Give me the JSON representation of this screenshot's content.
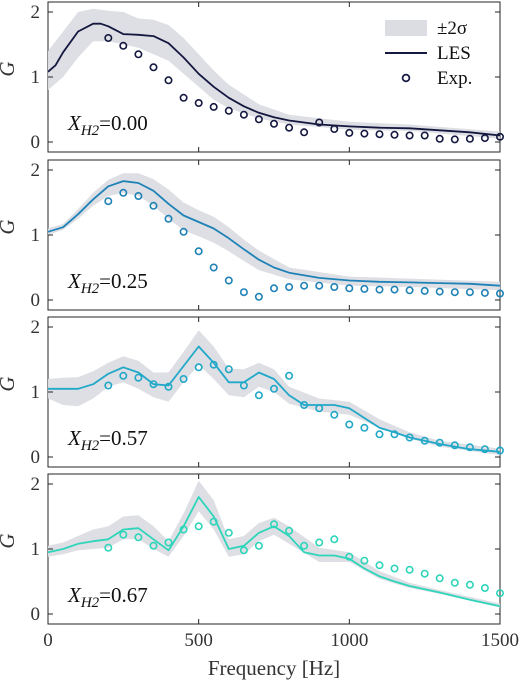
{
  "chart_data": {
    "type": "line",
    "xlabel": "Frequency [Hz]",
    "xlim": [
      0,
      1500
    ],
    "xticks": [
      0,
      500,
      1000,
      1500
    ],
    "legend": {
      "placement": "top-right",
      "entries": [
        {
          "id": "band",
          "label": "±2σ"
        },
        {
          "id": "les",
          "label": "LES"
        },
        {
          "id": "exp",
          "label": "Exp."
        }
      ]
    },
    "panels": [
      {
        "ylabel": "G",
        "ylim": [
          0,
          2
        ],
        "yticks": [
          0,
          1,
          2
        ],
        "label_var": "X",
        "label_sub": "H2",
        "label_val": "=0.00",
        "color": "#14183f",
        "les": {
          "x": [
            0,
            25,
            50,
            100,
            150,
            175,
            200,
            250,
            300,
            350,
            400,
            450,
            500,
            550,
            600,
            650,
            700,
            750,
            800,
            900,
            1000,
            1100,
            1200,
            1300,
            1400,
            1500
          ],
          "y": [
            1.08,
            1.18,
            1.38,
            1.7,
            1.82,
            1.82,
            1.78,
            1.66,
            1.65,
            1.63,
            1.52,
            1.3,
            1.05,
            0.85,
            0.68,
            0.55,
            0.45,
            0.38,
            0.33,
            0.27,
            0.24,
            0.22,
            0.21,
            0.18,
            0.15,
            0.1
          ]
        },
        "band": {
          "x": [
            0,
            50,
            100,
            150,
            200,
            250,
            300,
            350,
            400,
            450,
            500,
            550,
            600,
            700,
            800,
            1000,
            1200,
            1500
          ],
          "lower": [
            0.8,
            1.0,
            1.3,
            1.55,
            1.55,
            1.5,
            1.45,
            1.35,
            1.25,
            1.05,
            0.85,
            0.65,
            0.52,
            0.36,
            0.27,
            0.19,
            0.17,
            0.05
          ],
          "upper": [
            1.4,
            1.7,
            2.0,
            2.05,
            2.02,
            2.0,
            1.9,
            1.88,
            1.8,
            1.6,
            1.35,
            1.1,
            0.88,
            0.58,
            0.42,
            0.31,
            0.27,
            0.16
          ]
        },
        "exp": {
          "x": [
            200,
            250,
            300,
            350,
            400,
            450,
            500,
            550,
            600,
            650,
            700,
            750,
            800,
            850,
            900,
            950,
            1000,
            1050,
            1100,
            1150,
            1200,
            1250,
            1300,
            1350,
            1400,
            1450,
            1500
          ],
          "y": [
            1.6,
            1.48,
            1.35,
            1.15,
            0.95,
            0.68,
            0.6,
            0.54,
            0.48,
            0.42,
            0.35,
            0.28,
            0.22,
            0.15,
            0.3,
            0.2,
            0.14,
            0.13,
            0.12,
            0.11,
            0.1,
            0.1,
            0.05,
            0.04,
            0.05,
            0.06,
            0.08
          ]
        }
      },
      {
        "ylabel": "G",
        "ylim": [
          0,
          2
        ],
        "yticks": [
          0,
          1,
          2
        ],
        "label_var": "X",
        "label_sub": "H2",
        "label_val": "=0.25",
        "color": "#1f82b7",
        "les": {
          "x": [
            0,
            50,
            100,
            150,
            200,
            250,
            300,
            350,
            400,
            450,
            500,
            550,
            600,
            650,
            700,
            750,
            800,
            900,
            1000,
            1100,
            1200,
            1300,
            1400,
            1500
          ],
          "y": [
            1.05,
            1.12,
            1.32,
            1.55,
            1.75,
            1.83,
            1.8,
            1.68,
            1.48,
            1.3,
            1.2,
            1.1,
            0.95,
            0.78,
            0.62,
            0.5,
            0.42,
            0.34,
            0.3,
            0.28,
            0.27,
            0.26,
            0.25,
            0.22
          ]
        },
        "band": {
          "x": [
            0,
            50,
            100,
            150,
            200,
            250,
            300,
            350,
            400,
            450,
            500,
            550,
            600,
            650,
            700,
            800,
            1000,
            1200,
            1500
          ],
          "lower": [
            1.0,
            1.08,
            1.25,
            1.45,
            1.6,
            1.65,
            1.6,
            1.45,
            1.25,
            1.07,
            0.98,
            0.88,
            0.75,
            0.6,
            0.46,
            0.32,
            0.22,
            0.2,
            0.15
          ],
          "upper": [
            1.1,
            1.17,
            1.4,
            1.65,
            1.85,
            1.95,
            1.95,
            1.86,
            1.7,
            1.5,
            1.38,
            1.28,
            1.12,
            0.93,
            0.76,
            0.5,
            0.36,
            0.33,
            0.28
          ]
        },
        "exp": {
          "x": [
            200,
            250,
            300,
            350,
            400,
            450,
            500,
            550,
            600,
            650,
            700,
            750,
            800,
            850,
            900,
            950,
            1000,
            1050,
            1100,
            1150,
            1200,
            1250,
            1300,
            1350,
            1400,
            1450,
            1500
          ],
          "y": [
            1.52,
            1.65,
            1.6,
            1.45,
            1.25,
            1.05,
            0.75,
            0.5,
            0.3,
            0.12,
            0.05,
            0.18,
            0.2,
            0.22,
            0.22,
            0.2,
            0.18,
            0.17,
            0.16,
            0.16,
            0.15,
            0.14,
            0.13,
            0.12,
            0.12,
            0.11,
            0.1
          ]
        }
      },
      {
        "ylabel": "G",
        "ylim": [
          0,
          2
        ],
        "yticks": [
          0,
          1,
          2
        ],
        "label_var": "X",
        "label_sub": "H2",
        "label_val": "=0.57",
        "color": "#21a8c8",
        "les": {
          "x": [
            0,
            50,
            100,
            150,
            200,
            250,
            300,
            350,
            400,
            450,
            500,
            550,
            600,
            650,
            700,
            750,
            800,
            850,
            900,
            950,
            1000,
            1050,
            1100,
            1150,
            1200,
            1300,
            1400,
            1500
          ],
          "y": [
            1.05,
            1.05,
            1.05,
            1.12,
            1.28,
            1.38,
            1.3,
            1.12,
            1.1,
            1.4,
            1.7,
            1.45,
            1.15,
            1.15,
            1.3,
            1.2,
            0.95,
            0.8,
            0.8,
            0.8,
            0.75,
            0.6,
            0.45,
            0.38,
            0.3,
            0.2,
            0.12,
            0.08
          ]
        },
        "band": {
          "x": [
            0,
            50,
            100,
            150,
            200,
            250,
            300,
            350,
            400,
            450,
            500,
            550,
            600,
            650,
            700,
            750,
            800,
            900,
            1000,
            1100,
            1200,
            1300,
            1500
          ],
          "lower": [
            0.9,
            0.8,
            0.78,
            0.9,
            1.08,
            1.15,
            1.05,
            0.92,
            0.85,
            1.15,
            1.42,
            1.2,
            0.95,
            0.92,
            1.08,
            1.0,
            0.82,
            0.7,
            0.65,
            0.45,
            0.28,
            0.16,
            0.03
          ],
          "upper": [
            1.2,
            1.22,
            1.23,
            1.32,
            1.45,
            1.55,
            1.48,
            1.3,
            1.3,
            1.62,
            1.95,
            1.7,
            1.36,
            1.35,
            1.45,
            1.35,
            1.08,
            0.9,
            0.85,
            0.58,
            0.38,
            0.25,
            0.13
          ]
        },
        "exp": {
          "x": [
            200,
            250,
            300,
            350,
            400,
            450,
            500,
            550,
            600,
            650,
            700,
            750,
            800,
            850,
            900,
            950,
            1000,
            1050,
            1100,
            1150,
            1200,
            1250,
            1300,
            1350,
            1400,
            1450,
            1500
          ],
          "y": [
            1.1,
            1.25,
            1.22,
            1.12,
            1.08,
            1.2,
            1.38,
            1.42,
            1.35,
            1.1,
            0.95,
            1.05,
            1.25,
            0.8,
            0.75,
            0.65,
            0.5,
            0.45,
            0.35,
            0.35,
            0.3,
            0.25,
            0.22,
            0.18,
            0.15,
            0.12,
            0.1
          ]
        }
      },
      {
        "ylabel": "G",
        "ylim": [
          0,
          2
        ],
        "yticks": [
          0,
          1,
          2
        ],
        "label_var": "X",
        "label_sub": "H2",
        "label_val": "=0.67",
        "color": "#2ed5ba",
        "les": {
          "x": [
            0,
            50,
            100,
            150,
            200,
            250,
            300,
            350,
            400,
            450,
            500,
            550,
            600,
            650,
            700,
            750,
            800,
            850,
            900,
            950,
            1000,
            1050,
            1100,
            1150,
            1200,
            1300,
            1400,
            1500
          ],
          "y": [
            0.95,
            1.0,
            1.08,
            1.12,
            1.15,
            1.3,
            1.32,
            1.15,
            0.98,
            1.35,
            1.8,
            1.5,
            1.0,
            1.05,
            1.25,
            1.35,
            1.2,
            0.95,
            0.9,
            0.9,
            0.85,
            0.7,
            0.58,
            0.5,
            0.43,
            0.33,
            0.22,
            0.12
          ]
        },
        "band": {
          "x": [
            0,
            50,
            100,
            150,
            200,
            250,
            300,
            350,
            400,
            450,
            500,
            550,
            600,
            650,
            700,
            750,
            800,
            900,
            1000,
            1100,
            1200,
            1300,
            1500
          ],
          "lower": [
            0.88,
            0.92,
            0.98,
            1.0,
            1.02,
            1.15,
            1.15,
            1.0,
            0.88,
            1.2,
            1.58,
            1.3,
            0.88,
            0.92,
            1.12,
            1.22,
            1.08,
            0.8,
            0.8,
            0.54,
            0.4,
            0.31,
            0.1
          ],
          "upper": [
            1.05,
            1.1,
            1.2,
            1.3,
            1.35,
            1.5,
            1.52,
            1.35,
            1.12,
            1.55,
            2.05,
            1.75,
            1.15,
            1.2,
            1.4,
            1.48,
            1.35,
            1.02,
            0.95,
            0.66,
            0.48,
            0.37,
            0.16
          ]
        },
        "exp": {
          "x": [
            200,
            250,
            300,
            350,
            400,
            450,
            500,
            550,
            600,
            650,
            700,
            750,
            800,
            850,
            900,
            950,
            1000,
            1050,
            1100,
            1150,
            1200,
            1250,
            1300,
            1350,
            1400,
            1450,
            1500
          ],
          "y": [
            1.02,
            1.22,
            1.18,
            1.05,
            1.1,
            1.3,
            1.35,
            1.42,
            1.25,
            0.98,
            1.05,
            1.38,
            1.28,
            1.05,
            1.1,
            1.15,
            0.88,
            0.82,
            0.75,
            0.7,
            0.68,
            0.62,
            0.55,
            0.48,
            0.45,
            0.4,
            0.32
          ]
        }
      }
    ]
  }
}
